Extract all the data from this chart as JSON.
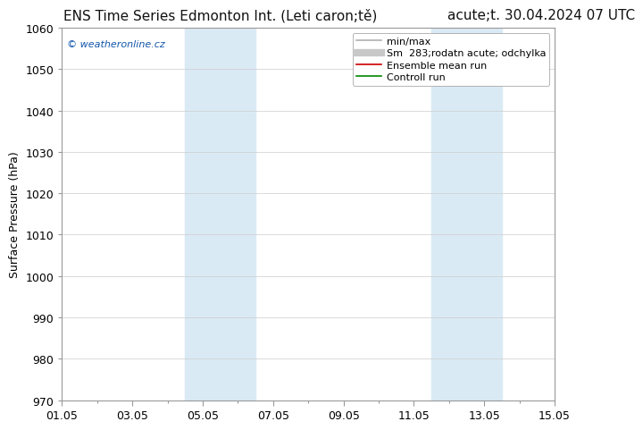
{
  "title_left": "ENS Time Series Edmonton Int. (Leti caron;tě)",
  "title_right": "acute;t. 30.04.2024 07 UTC",
  "ylabel": "Surface Pressure (hPa)",
  "ylim": [
    970,
    1060
  ],
  "yticks": [
    970,
    980,
    990,
    1000,
    1010,
    1020,
    1030,
    1040,
    1050,
    1060
  ],
  "xtick_labels": [
    "01.05",
    "03.05",
    "05.05",
    "07.05",
    "09.05",
    "11.05",
    "13.05",
    "15.05"
  ],
  "xtick_positions": [
    0,
    2,
    4,
    6,
    8,
    10,
    12,
    14
  ],
  "xlim": [
    0,
    14
  ],
  "shaded_regions": [
    {
      "xstart": 3.5,
      "xend": 5.5,
      "color": "#daeaf5"
    },
    {
      "xstart": 10.5,
      "xend": 12.5,
      "color": "#daeaf5"
    }
  ],
  "watermark": "© weatheronline.cz",
  "legend_entries": [
    {
      "label": "min/max",
      "color": "#b0b0b0",
      "lw": 1.2,
      "ls": "-"
    },
    {
      "label": "Sm  283;rodatn acute; odchylka",
      "color": "#c8c8c8",
      "lw": 6,
      "ls": "-"
    },
    {
      "label": "Ensemble mean run",
      "color": "#cc0000",
      "lw": 1.2,
      "ls": "-"
    },
    {
      "label": "Controll run",
      "color": "#008800",
      "lw": 1.2,
      "ls": "-"
    }
  ],
  "bg_color": "#ffffff",
  "plot_bg_color": "#ffffff",
  "grid_color": "#cccccc",
  "border_color": "#999999",
  "title_fontsize": 11,
  "ylabel_fontsize": 9,
  "tick_fontsize": 9,
  "legend_fontsize": 8,
  "watermark_color": "#1155aa"
}
